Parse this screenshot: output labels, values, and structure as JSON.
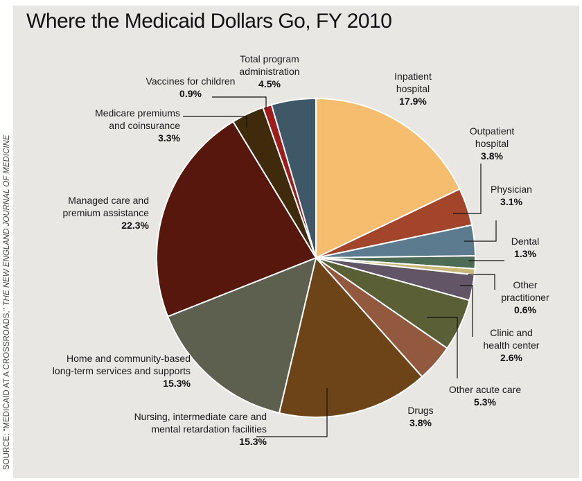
{
  "source": {
    "prefix": "SOURCE: “MEDICAID AT A CROSSROADS,”",
    "journal": "THE NEW ENGLAND JOURNAL OF MEDICINE"
  },
  "chart_data": {
    "type": "pie",
    "title": "Where the Medicaid Dollars Go, FY 2010",
    "slices": [
      {
        "key": "inpatient",
        "lines": [
          "Inpatient",
          "hospital"
        ],
        "percent_label": "17.9%",
        "value": 17.9,
        "color": "#f7bd6e"
      },
      {
        "key": "outpatient",
        "lines": [
          "Outpatient",
          "hospital"
        ],
        "percent_label": "3.8%",
        "value": 3.8,
        "color": "#a2452b"
      },
      {
        "key": "physician",
        "lines": [
          "Physician"
        ],
        "percent_label": "3.1%",
        "value": 3.1,
        "color": "#5d7b8f"
      },
      {
        "key": "dental",
        "lines": [
          "Dental"
        ],
        "percent_label": "1.3%",
        "value": 1.3,
        "color": "#4e6b55"
      },
      {
        "key": "other-practitioner",
        "lines": [
          "Other",
          "practitioner"
        ],
        "percent_label": "0.6%",
        "value": 0.6,
        "color": "#c9b878"
      },
      {
        "key": "clinic",
        "lines": [
          "Clinic and",
          "health center"
        ],
        "percent_label": "2.6%",
        "value": 2.6,
        "color": "#625566"
      },
      {
        "key": "other-acute",
        "lines": [
          "Other acute care"
        ],
        "percent_label": "5.3%",
        "value": 5.3,
        "color": "#5a5f36"
      },
      {
        "key": "drugs",
        "lines": [
          "Drugs"
        ],
        "percent_label": "3.8%",
        "value": 3.8,
        "color": "#93593e"
      },
      {
        "key": "nursing",
        "lines": [
          "Nursing, intermediate care and",
          "mental retardation facilities"
        ],
        "percent_label": "15.3%",
        "value": 15.3,
        "color": "#6d4417"
      },
      {
        "key": "home-community",
        "lines": [
          "Home and community-based",
          "long-term services and supports"
        ],
        "percent_label": "15.3%",
        "value": 15.3,
        "color": "#5e604f"
      },
      {
        "key": "managed-care",
        "lines": [
          "Managed care and",
          "premium assistance"
        ],
        "percent_label": "22.3%",
        "value": 22.3,
        "color": "#57170c"
      },
      {
        "key": "medicare-premiums",
        "lines": [
          "Medicare premiums",
          "and coinsurance"
        ],
        "percent_label": "3.3%",
        "value": 3.3,
        "color": "#3f2a0c"
      },
      {
        "key": "vaccines",
        "lines": [
          "Vaccines for children"
        ],
        "percent_label": "0.9%",
        "value": 0.9,
        "color": "#a01c1c"
      },
      {
        "key": "administration",
        "lines": [
          "Total program",
          "administration"
        ],
        "percent_label": "4.5%",
        "value": 4.5,
        "color": "#3f5868"
      }
    ]
  }
}
